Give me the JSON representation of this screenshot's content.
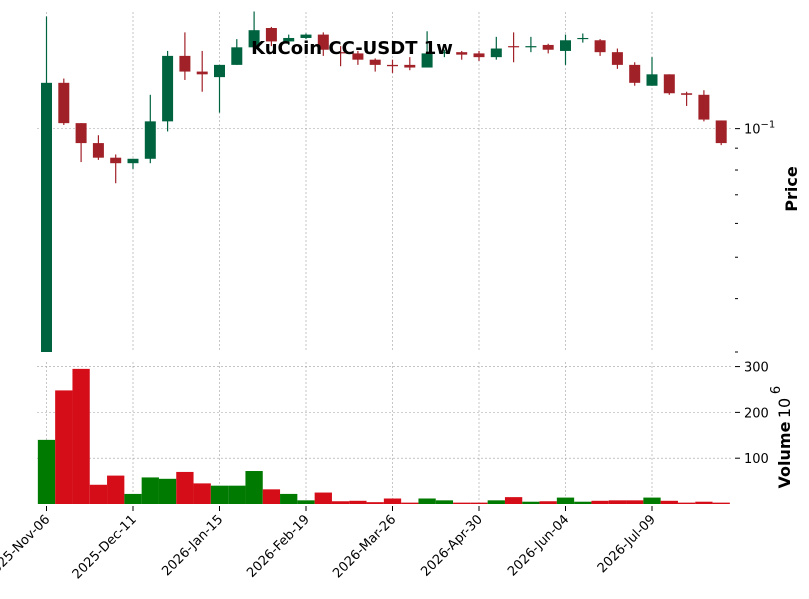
{
  "chart_data": {
    "type": "candlestick",
    "title": "KuCoin CC-USDT 1w",
    "price_label": "Price",
    "volume_label": "Volume",
    "volume_exponent_label": "10",
    "volume_exponent_sup": "6",
    "price_scale": "log",
    "price_tick_labels": [
      {
        "value": 0.1,
        "base": "10",
        "exp": "−1"
      }
    ],
    "volume_tick_labels": [
      100,
      200,
      300
    ],
    "volume_unit_multiplier": 1000000,
    "x_tick_labels": [
      "2025-Nov-06",
      "2025-Dec-11",
      "2026-Jan-15",
      "2026-Feb-19",
      "2026-Mar-26",
      "2026-Apr-30",
      "2026-Jun-04",
      "2026-Jul-09"
    ],
    "x_tick_label_indices": [
      0,
      5,
      10,
      15,
      20,
      25,
      30,
      35
    ],
    "up_color": "#006340",
    "down_color": "#a02128",
    "volume_up_color": "#007a00",
    "volume_down_color": "#d50d18",
    "grid": true,
    "candles": [
      {
        "date": "2025-Nov-06",
        "open": 0.03,
        "high": 0.183,
        "low": 0.03,
        "close": 0.128,
        "volume": 140
      },
      {
        "date": "2025-Nov-13",
        "open": 0.128,
        "high": 0.131,
        "low": 0.102,
        "close": 0.103,
        "volume": 248
      },
      {
        "date": "2025-Nov-20",
        "open": 0.103,
        "high": 0.103,
        "low": 0.0835,
        "close": 0.0925,
        "volume": 295
      },
      {
        "date": "2025-Nov-27",
        "open": 0.0925,
        "high": 0.0965,
        "low": 0.0845,
        "close": 0.0855,
        "volume": 42
      },
      {
        "date": "2025-Dec-04",
        "open": 0.0855,
        "high": 0.087,
        "low": 0.0745,
        "close": 0.083,
        "volume": 62
      },
      {
        "date": "2025-Dec-11",
        "open": 0.083,
        "high": 0.085,
        "low": 0.0805,
        "close": 0.085,
        "volume": 22
      },
      {
        "date": "2025-Dec-18",
        "open": 0.085,
        "high": 0.12,
        "low": 0.083,
        "close": 0.104,
        "volume": 58
      },
      {
        "date": "2025-Dec-25",
        "open": 0.104,
        "high": 0.152,
        "low": 0.0985,
        "close": 0.148,
        "volume": 55
      },
      {
        "date": "2025-Dec-31",
        "open": 0.148,
        "high": 0.168,
        "low": 0.13,
        "close": 0.136,
        "volume": 70
      },
      {
        "date": "2026-Jan-08",
        "open": 0.136,
        "high": 0.152,
        "low": 0.122,
        "close": 0.134,
        "volume": 45
      },
      {
        "date": "2026-Jan-15",
        "open": 0.132,
        "high": 0.141,
        "low": 0.109,
        "close": 0.141,
        "volume": 40
      },
      {
        "date": "2026-Jan-22",
        "open": 0.141,
        "high": 0.162,
        "low": 0.141,
        "close": 0.155,
        "volume": 40
      },
      {
        "date": "2026-Jan-29",
        "open": 0.155,
        "high": 0.188,
        "low": 0.155,
        "close": 0.17,
        "volume": 72
      },
      {
        "date": "2026-Feb-05",
        "open": 0.172,
        "high": 0.173,
        "low": 0.156,
        "close": 0.16,
        "volume": 32
      },
      {
        "date": "2026-Feb-12",
        "open": 0.16,
        "high": 0.166,
        "low": 0.157,
        "close": 0.163,
        "volume": 22
      },
      {
        "date": "2026-Feb-19",
        "open": 0.163,
        "high": 0.167,
        "low": 0.162,
        "close": 0.166,
        "volume": 8
      },
      {
        "date": "2026-Feb-26",
        "open": 0.166,
        "high": 0.168,
        "low": 0.148,
        "close": 0.153,
        "volume": 25
      },
      {
        "date": "2026-Mar-05",
        "open": 0.151,
        "high": 0.156,
        "low": 0.14,
        "close": 0.15,
        "volume": 6
      },
      {
        "date": "2026-Mar-12",
        "open": 0.15,
        "high": 0.152,
        "low": 0.141,
        "close": 0.145,
        "volume": 7
      },
      {
        "date": "2026-Mar-19",
        "open": 0.145,
        "high": 0.146,
        "low": 0.136,
        "close": 0.141,
        "volume": 4
      },
      {
        "date": "2026-Mar-26",
        "open": 0.141,
        "high": 0.145,
        "low": 0.135,
        "close": 0.14,
        "volume": 12
      },
      {
        "date": "2026-Apr-02",
        "open": 0.141,
        "high": 0.147,
        "low": 0.137,
        "close": 0.139,
        "volume": 3
      },
      {
        "date": "2026-Apr-09",
        "open": 0.139,
        "high": 0.169,
        "low": 0.139,
        "close": 0.15,
        "volume": 12
      },
      {
        "date": "2026-Apr-16",
        "open": 0.15,
        "high": 0.153,
        "low": 0.147,
        "close": 0.151,
        "volume": 8
      },
      {
        "date": "2026-Apr-23",
        "open": 0.151,
        "high": 0.152,
        "low": 0.145,
        "close": 0.149,
        "volume": 3
      },
      {
        "date": "2026-Apr-30",
        "open": 0.15,
        "high": 0.152,
        "low": 0.144,
        "close": 0.147,
        "volume": 3
      },
      {
        "date": "2026-May-07",
        "open": 0.147,
        "high": 0.164,
        "low": 0.145,
        "close": 0.154,
        "volume": 8
      },
      {
        "date": "2026-May-14",
        "open": 0.156,
        "high": 0.168,
        "low": 0.143,
        "close": 0.155,
        "volume": 15
      },
      {
        "date": "2026-May-21",
        "open": 0.155,
        "high": 0.164,
        "low": 0.151,
        "close": 0.156,
        "volume": 5
      },
      {
        "date": "2026-May-28",
        "open": 0.157,
        "high": 0.158,
        "low": 0.15,
        "close": 0.153,
        "volume": 6
      },
      {
        "date": "2026-Jun-04",
        "open": 0.152,
        "high": 0.166,
        "low": 0.141,
        "close": 0.161,
        "volume": 14
      },
      {
        "date": "2026-Jun-11",
        "open": 0.162,
        "high": 0.167,
        "low": 0.159,
        "close": 0.163,
        "volume": 5
      },
      {
        "date": "2026-Jun-18",
        "open": 0.161,
        "high": 0.162,
        "low": 0.148,
        "close": 0.151,
        "volume": 7
      },
      {
        "date": "2026-Jun-25",
        "open": 0.151,
        "high": 0.154,
        "low": 0.138,
        "close": 0.141,
        "volume": 8
      },
      {
        "date": "2026-Jul-02",
        "open": 0.141,
        "high": 0.143,
        "low": 0.126,
        "close": 0.128,
        "volume": 8
      },
      {
        "date": "2026-Jul-09",
        "open": 0.126,
        "high": 0.147,
        "low": 0.126,
        "close": 0.134,
        "volume": 14
      },
      {
        "date": "2026-Jul-16",
        "open": 0.134,
        "high": 0.134,
        "low": 0.12,
        "close": 0.121,
        "volume": 7
      },
      {
        "date": "2026-Jul-23",
        "open": 0.121,
        "high": 0.122,
        "low": 0.113,
        "close": 0.12,
        "volume": 3
      },
      {
        "date": "2026-Jul-30",
        "open": 0.12,
        "high": 0.123,
        "low": 0.104,
        "close": 0.105,
        "volume": 5
      },
      {
        "date": "2026-Aug-06",
        "open": 0.1045,
        "high": 0.1045,
        "low": 0.0915,
        "close": 0.0925,
        "volume": 3
      }
    ]
  }
}
